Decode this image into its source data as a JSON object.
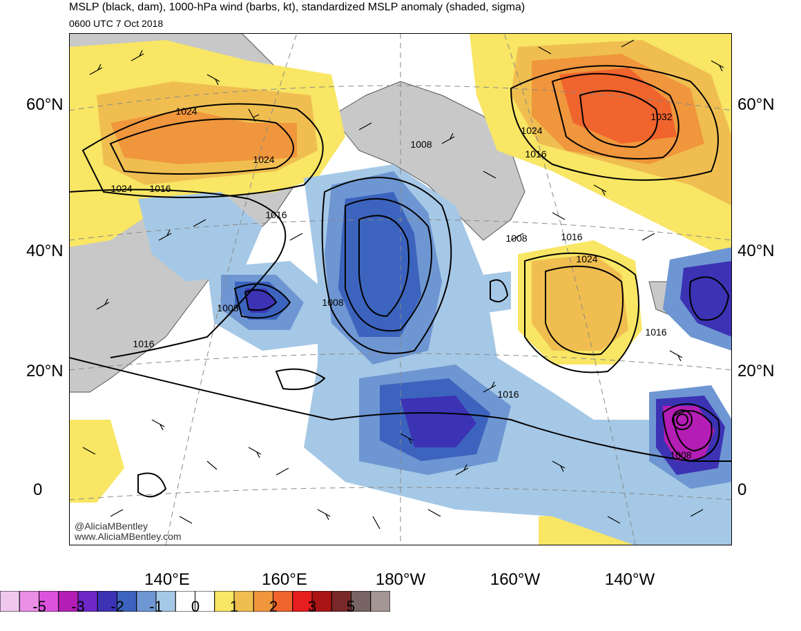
{
  "header": {
    "title": "MSLP (black, dam), 1000-hPa wind (barbs, kt), standardized MSLP anomaly (shaded, sigma)",
    "valid_time": "0600 UTC 7 Oct 2018"
  },
  "axes": {
    "lat_labels": [
      "60°N",
      "40°N",
      "20°N",
      "0"
    ],
    "lon_labels": [
      "140°E",
      "160°E",
      "180°W",
      "160°W",
      "140°W"
    ]
  },
  "isobar_labels": [
    "1024",
    "1024",
    "1024",
    "1016",
    "1016",
    "1008",
    "1008",
    "1008",
    "1016",
    "1024",
    "1024",
    "1016",
    "1032",
    "1008",
    "1016",
    "1016",
    "1016",
    "1008"
  ],
  "credit": {
    "handle": "@AliciaMBentley",
    "website": "www.AliciaMBentley.com"
  },
  "colorbar": {
    "colors": [
      "#f0c8ee",
      "#ea8ee6",
      "#dc52dc",
      "#b41eb4",
      "#6e28c8",
      "#3c32b4",
      "#3c64be",
      "#6e96d2",
      "#a5c8e6",
      "#ffffff",
      "#ffffff",
      "#f8e664",
      "#f0be50",
      "#f0963c",
      "#f0642d",
      "#e61e1e",
      "#aa1414",
      "#782828",
      "#786464",
      "#a59696"
    ],
    "labels": [
      "-5",
      "-3",
      "-2",
      "-1",
      "0",
      "1",
      "2",
      "3",
      "5"
    ]
  },
  "palette": {
    "land": "#c8c8c8",
    "ocean": "#ffffff",
    "isobar": "#000000"
  }
}
